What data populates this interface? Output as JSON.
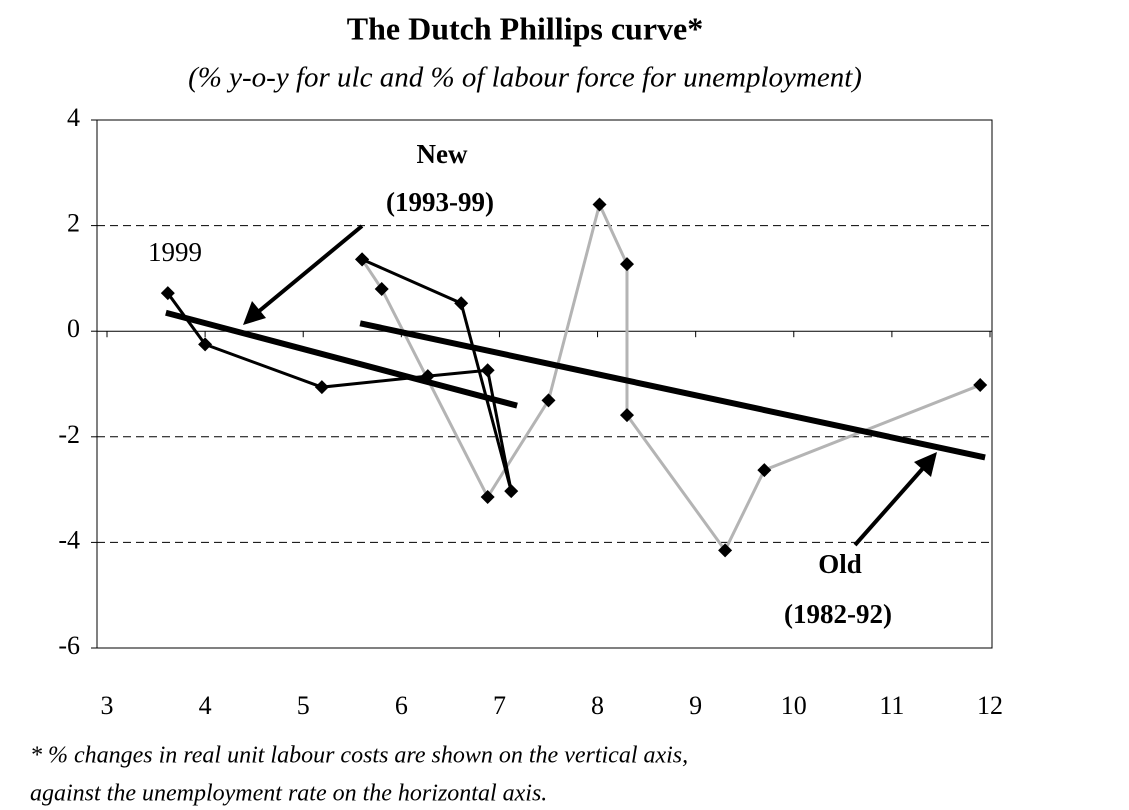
{
  "chart_data": {
    "type": "line",
    "title": "The Dutch Phillips curve*",
    "subtitle": "(% y-o-y for ulc and % of labour force for unemployment)",
    "footnote": [
      "* % changes in real unit labour costs are shown on the vertical axis,",
      "against the unemployment rate on the horizontal axis."
    ],
    "xlim": [
      3,
      12
    ],
    "xticks": [
      3,
      4,
      5,
      6,
      7,
      8,
      9,
      10,
      11,
      12
    ],
    "ylim": [
      -6,
      4
    ],
    "yticks": [
      -6,
      -4,
      -2,
      0,
      2,
      4
    ],
    "grid": true,
    "marker_color": "#000000",
    "series": [
      {
        "color": "#b4b4b4",
        "x": [
          5.6,
          5.8,
          6.88,
          7.5,
          8.02,
          8.3,
          8.3,
          9.3,
          9.7,
          11.9
        ],
        "values": [
          1.36,
          0.8,
          -3.14,
          -1.31,
          2.4,
          1.27,
          -1.59,
          -4.15,
          -2.63,
          -1.02
        ]
      },
      {
        "color": "#000000",
        "x": [
          5.6,
          6.61,
          7.12,
          6.88,
          6.27,
          5.19,
          4.0,
          3.62
        ],
        "values": [
          1.36,
          0.53,
          -3.03,
          -0.74,
          -0.85,
          -1.06,
          -0.25,
          0.72
        ]
      }
    ],
    "trendlines": [
      {
        "color": "#000000",
        "x": [
          3.6,
          7.18
        ],
        "values": [
          0.35,
          -1.41
        ]
      },
      {
        "color": "#000000",
        "x": [
          5.58,
          11.95
        ],
        "values": [
          0.15,
          -2.39
        ]
      }
    ],
    "annotations": [
      "New",
      "(1993-99)",
      "1999",
      "Old",
      "(1982-92)"
    ]
  }
}
